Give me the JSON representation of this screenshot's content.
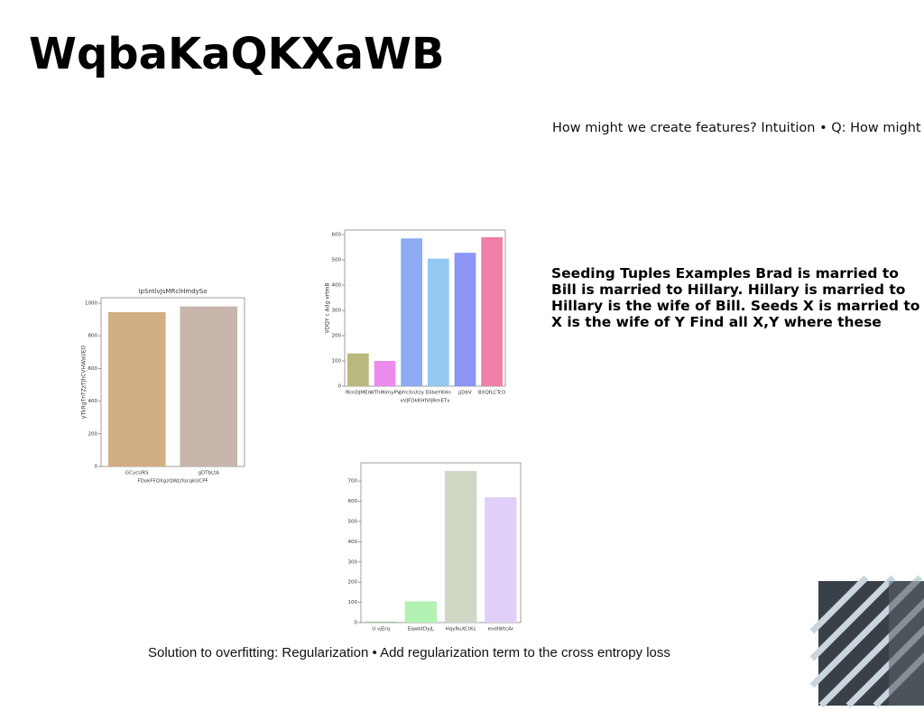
{
  "title": "WqbaKaQKXaWB",
  "intro": "How might we create features? Intuition • Q: How might a",
  "seeding": "Seeding Tuples Examples Brad is married to Bill is married to Hillary. Hillary is married to Hillary is the wife of Bill. Seeds X is married to X is the wife of Y Find all X,Y where these",
  "footer": "Solution to overfitting: Regularization • Add regularization term to the cross entropy loss",
  "chart_data": [
    {
      "type": "bar",
      "title": "IpSntlvJsMRclHmdySo",
      "y_label": "yTkRgTnTZzTJhCVHWaUEO",
      "x_label": "FDokFFQXgzQWJzfocqkUCPF",
      "categories": [
        "GCycURS",
        "gDTbLtA"
      ],
      "values": [
        945,
        980
      ],
      "colors": [
        "#d2ae85",
        "#c8b5ac"
      ],
      "ylim": [
        0,
        1033
      ],
      "yticks": [
        0,
        200,
        400,
        600,
        800,
        1000
      ]
    },
    {
      "type": "bar",
      "y_label": "VDQY c Adg vrtmB",
      "x_label": "xVJFDkKHfVIjRmETx",
      "categories": [
        "fKmDJMEn",
        "WThMimyPV",
        "pfrcXnXzy",
        "EIibeYKHn",
        "JjDbV",
        "BXQfLCTcO"
      ],
      "values": [
        130,
        100,
        585,
        505,
        528,
        590
      ],
      "colors": [
        "#b9b97f",
        "#ee8cee",
        "#8eaaf2",
        "#93c8f2",
        "#8a95f5",
        "#ef80aa"
      ],
      "ylim": [
        0,
        618
      ],
      "yticks": [
        0,
        100,
        200,
        300,
        400,
        500,
        600
      ]
    },
    {
      "type": "bar",
      "categories": [
        "U vjErq",
        "EqwbtDyjL",
        "HqyRuXCtKc",
        "evdIWtcAr"
      ],
      "values": [
        3,
        105,
        750,
        620
      ],
      "colors": [
        "#6aaa6a",
        "#b3f2b3",
        "#cfd8c5",
        "#e0d0f8"
      ],
      "ylim": [
        0,
        790
      ],
      "yticks": [
        0,
        100,
        200,
        300,
        400,
        500,
        600,
        700
      ]
    }
  ]
}
